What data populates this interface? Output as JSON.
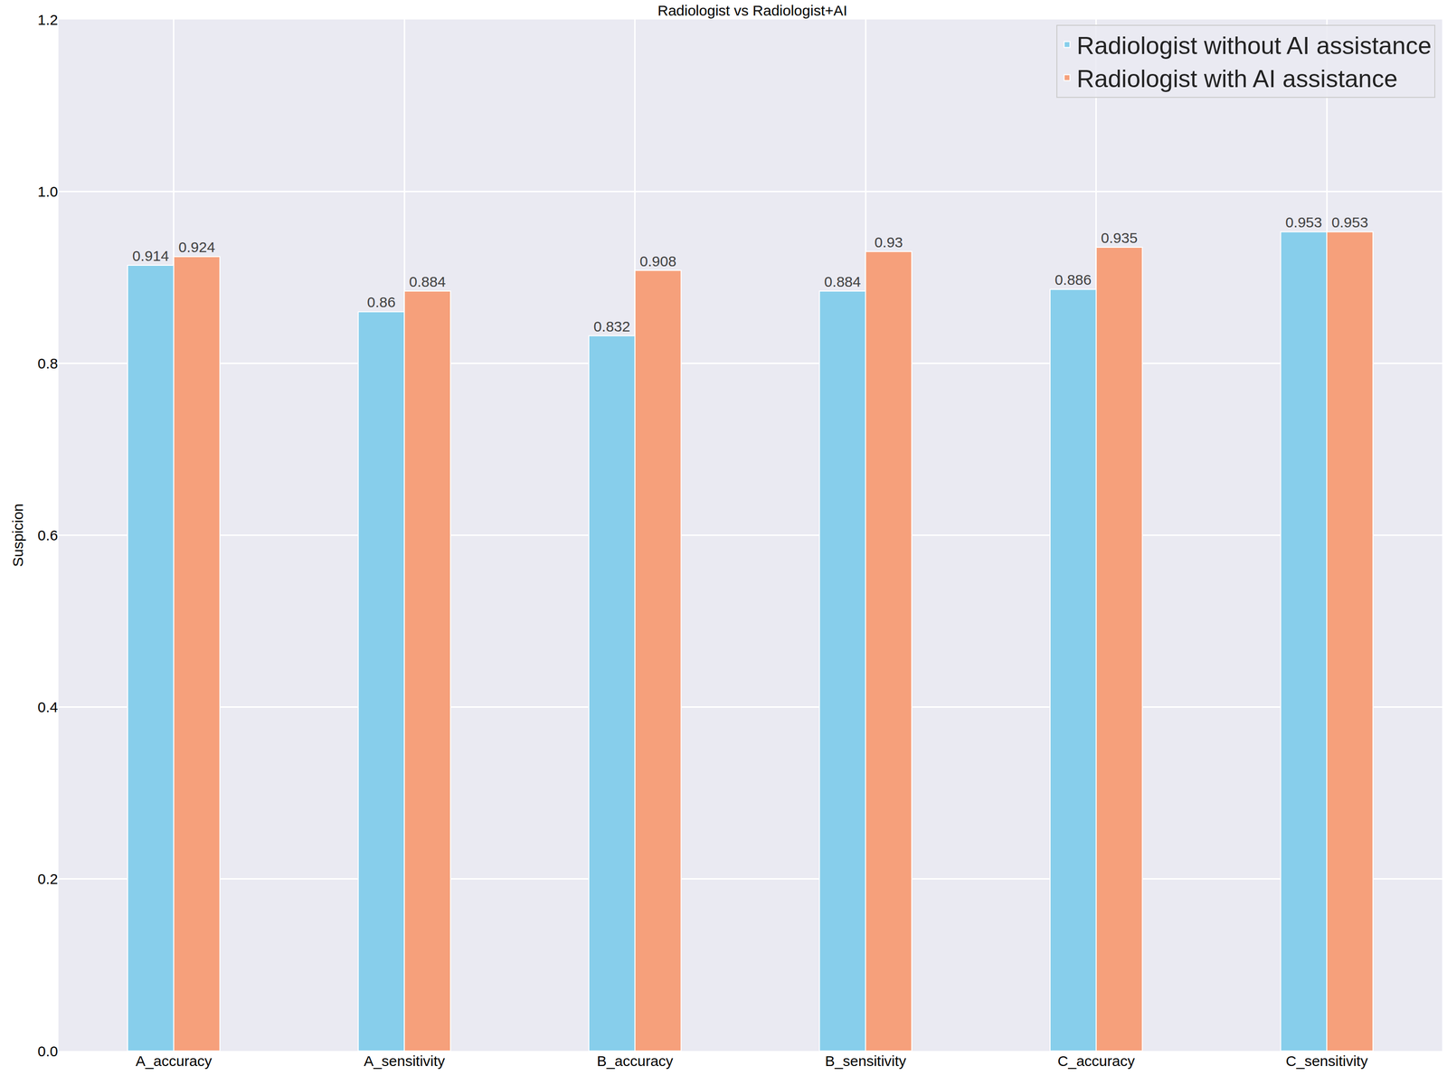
{
  "chart_data": {
    "type": "bar",
    "title": "Radiologist vs Radiologist+AI",
    "y_label": "Suspicion",
    "categories": [
      "A_accuracy",
      "A_sensitivity",
      "B_accuracy",
      "B_sensitivity",
      "C_accuracy",
      "C_sensitivity"
    ],
    "series": [
      {
        "name": "Radiologist without AI assistance",
        "color": "#87ceeb",
        "values": [
          0.914,
          0.86,
          0.832,
          0.884,
          0.886,
          0.953
        ]
      },
      {
        "name": "Radiologist with AI assistance",
        "color": "#f6a07b",
        "values": [
          0.924,
          0.884,
          0.908,
          0.93,
          0.935,
          0.953
        ]
      }
    ],
    "ylim": [
      0,
      1.2
    ],
    "yticks": [
      {
        "value": 0,
        "label": "0.0"
      },
      0.2,
      0.4,
      0.6,
      0.8,
      {
        "value": 1,
        "label": "1.0"
      },
      1.2
    ],
    "grid": true,
    "legend": "upper right",
    "data_labels": true
  }
}
